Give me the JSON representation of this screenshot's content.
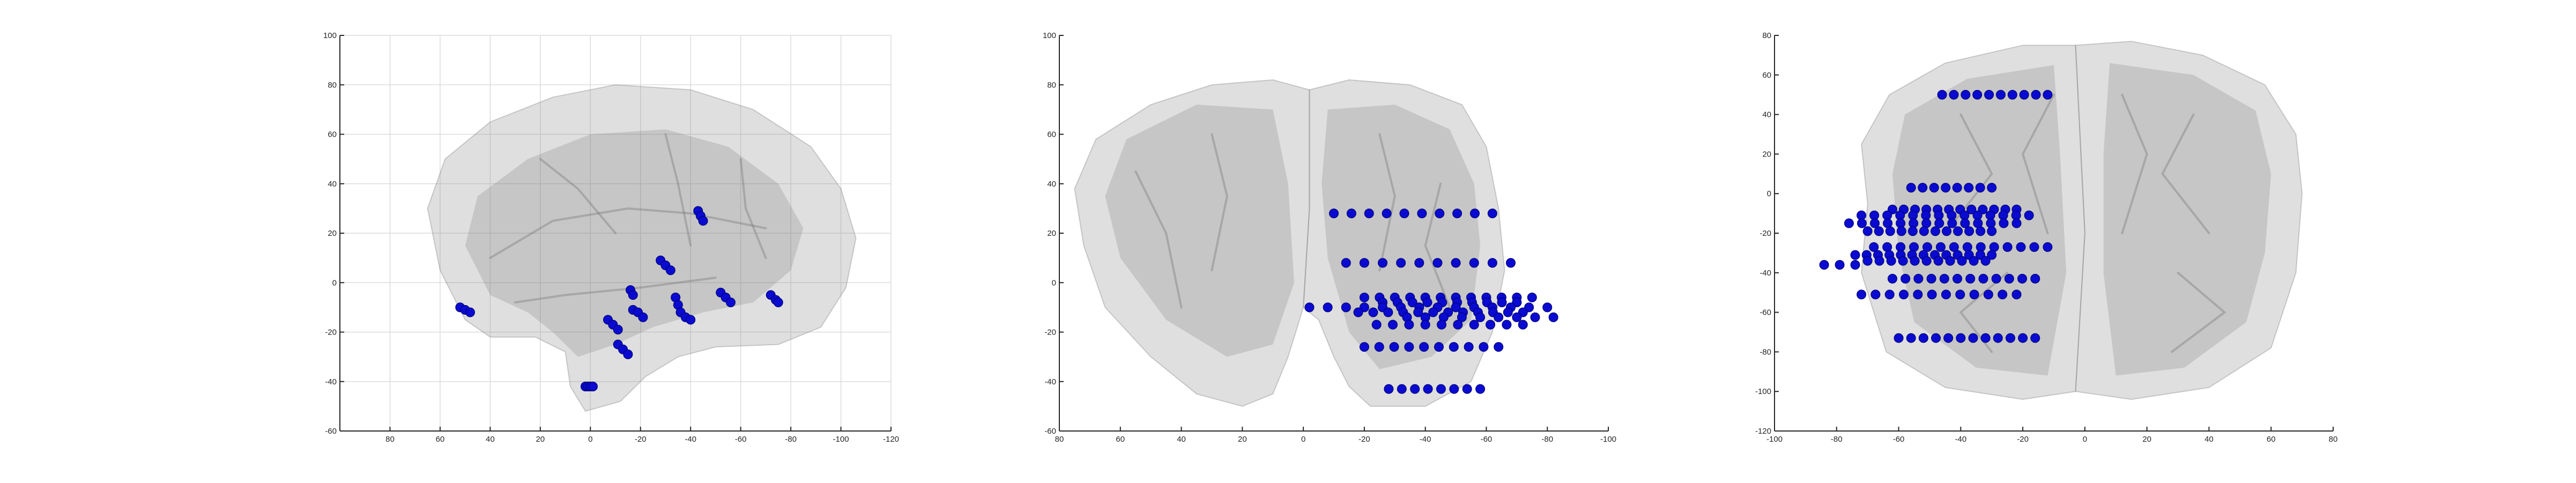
{
  "chart_data": [
    {
      "type": "scatter",
      "view": "sagittal",
      "title": "",
      "xlabel": "",
      "ylabel": "",
      "xlim": [
        100,
        -120
      ],
      "ylim": [
        -60,
        100
      ],
      "x_reversed": true,
      "grid": true,
      "xticks": [
        "80",
        "60",
        "40",
        "20",
        "0",
        "-20",
        "-40",
        "-60",
        "-80",
        "-100",
        "-120"
      ],
      "yticks": [
        "100",
        "80",
        "60",
        "40",
        "20",
        "0",
        "-20",
        "-40",
        "-60"
      ],
      "marker_color": "#0a0ad0",
      "brain_color": "#8c8c8c",
      "points": [
        {
          "x": 52,
          "y": -10
        },
        {
          "x": 50,
          "y": -11
        },
        {
          "x": 48,
          "y": -12
        },
        {
          "x": 2,
          "y": -42
        },
        {
          "x": 1,
          "y": -42
        },
        {
          "x": 0,
          "y": -42
        },
        {
          "x": -1,
          "y": -42
        },
        {
          "x": -7,
          "y": -15
        },
        {
          "x": -9,
          "y": -17
        },
        {
          "x": -11,
          "y": -19
        },
        {
          "x": -11,
          "y": -25
        },
        {
          "x": -13,
          "y": -27
        },
        {
          "x": -15,
          "y": -29
        },
        {
          "x": -16,
          "y": -3
        },
        {
          "x": -17,
          "y": -5
        },
        {
          "x": -17,
          "y": -11
        },
        {
          "x": -19,
          "y": -12
        },
        {
          "x": -21,
          "y": -14
        },
        {
          "x": -28,
          "y": 9
        },
        {
          "x": -30,
          "y": 7
        },
        {
          "x": -32,
          "y": 5
        },
        {
          "x": -34,
          "y": -6
        },
        {
          "x": -35,
          "y": -9
        },
        {
          "x": -36,
          "y": -12
        },
        {
          "x": -38,
          "y": -14
        },
        {
          "x": -40,
          "y": -15
        },
        {
          "x": -43,
          "y": 29
        },
        {
          "x": -44,
          "y": 27
        },
        {
          "x": -45,
          "y": 25
        },
        {
          "x": -52,
          "y": -4
        },
        {
          "x": -54,
          "y": -6
        },
        {
          "x": -56,
          "y": -8
        },
        {
          "x": -72,
          "y": -5
        },
        {
          "x": -74,
          "y": -7
        },
        {
          "x": -75,
          "y": -8
        }
      ]
    },
    {
      "type": "scatter",
      "view": "coronal",
      "title": "",
      "xlabel": "",
      "ylabel": "",
      "xlim": [
        80,
        -100
      ],
      "ylim": [
        -60,
        100
      ],
      "x_reversed": true,
      "grid": false,
      "xticks": [
        "80",
        "60",
        "40",
        "20",
        "0",
        "-20",
        "-40",
        "-60",
        "-80",
        "-100"
      ],
      "yticks": [
        "100",
        "80",
        "60",
        "40",
        "20",
        "0",
        "-20",
        "-40",
        "-60"
      ],
      "marker_color": "#0a0ad0",
      "brain_color": "#8c8c8c",
      "rows": [
        {
          "y": 28,
          "x_start": -10,
          "x_end": -62,
          "count": 10
        },
        {
          "y": 8,
          "x_start": -14,
          "x_end": -68,
          "count": 10
        },
        {
          "y": -6,
          "x_start": -20,
          "x_end": -75,
          "count": 12
        },
        {
          "y": -8,
          "x_start": -26,
          "x_end": -70,
          "count": 10
        },
        {
          "y": -10,
          "x_start": -2,
          "x_end": -80,
          "count": 14
        },
        {
          "y": -12,
          "x_start": -18,
          "x_end": -72,
          "count": 12
        },
        {
          "y": -14,
          "x_start": -34,
          "x_end": -82,
          "count": 9
        },
        {
          "y": -17,
          "x_start": -24,
          "x_end": -72,
          "count": 10
        },
        {
          "y": -26,
          "x_start": -20,
          "x_end": -64,
          "count": 10
        },
        {
          "y": -43,
          "x_start": -28,
          "x_end": -58,
          "count": 8
        }
      ]
    },
    {
      "type": "scatter",
      "view": "axial",
      "title": "",
      "xlabel": "",
      "ylabel": "",
      "xlim": [
        -100,
        80
      ],
      "ylim": [
        -120,
        80
      ],
      "x_reversed": false,
      "grid": false,
      "xticks": [
        "-100",
        "-80",
        "-60",
        "-40",
        "-20",
        "0",
        "20",
        "40",
        "60",
        "80"
      ],
      "yticks": [
        "80",
        "60",
        "40",
        "20",
        "0",
        "-20",
        "-40",
        "-60",
        "-80",
        "-100",
        "-120"
      ],
      "marker_color": "#0a0ad0",
      "brain_color": "#8c8c8c",
      "rows": [
        {
          "y": 50,
          "x_start": -46,
          "x_end": -12,
          "count": 10
        },
        {
          "y": 3,
          "x_start": -56,
          "x_end": -30,
          "count": 8
        },
        {
          "y": -8,
          "x_start": -62,
          "x_end": -22,
          "count": 12
        },
        {
          "y": -11,
          "x_start": -72,
          "x_end": -18,
          "count": 14
        },
        {
          "y": -15,
          "x_start": -76,
          "x_end": -22,
          "count": 14
        },
        {
          "y": -19,
          "x_start": -70,
          "x_end": -30,
          "count": 12
        },
        {
          "y": -27,
          "x_start": -68,
          "x_end": -12,
          "count": 14
        },
        {
          "y": -31,
          "x_start": -74,
          "x_end": -30,
          "count": 13
        },
        {
          "y": -34,
          "x_start": -70,
          "x_end": -32,
          "count": 11
        },
        {
          "y": -36,
          "x_start": -84,
          "x_end": -74,
          "count": 3
        },
        {
          "y": -43,
          "x_start": -62,
          "x_end": -16,
          "count": 12
        },
        {
          "y": -51,
          "x_start": -72,
          "x_end": -22,
          "count": 12
        },
        {
          "y": -73,
          "x_start": -60,
          "x_end": -16,
          "count": 12
        }
      ]
    }
  ]
}
